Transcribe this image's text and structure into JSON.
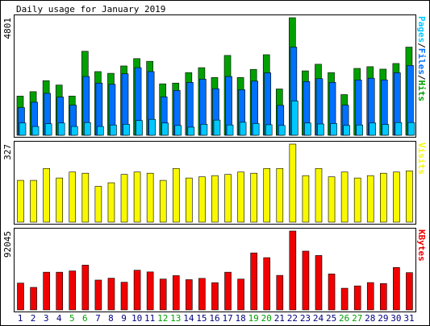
{
  "title": "Daily usage for January 2019",
  "colors": {
    "hits": "#00a000",
    "files": "#0070ff",
    "pages": "#00c8ff",
    "visits": "#f8f800",
    "kbytes": "#f00000",
    "weekend_label": "#00a000",
    "weekday_label": "#000080",
    "border": "#000000",
    "background": "#ffffff"
  },
  "chart_data": [
    {
      "type": "bar",
      "panel": "hits-files-pages",
      "categories": [
        "1",
        "2",
        "3",
        "4",
        "5",
        "6",
        "7",
        "8",
        "9",
        "10",
        "11",
        "12",
        "13",
        "14",
        "15",
        "16",
        "17",
        "18",
        "19",
        "20",
        "21",
        "22",
        "23",
        "24",
        "25",
        "26",
        "27",
        "28",
        "29",
        "30",
        "31"
      ],
      "weekend_days": [
        "5",
        "6",
        "12",
        "13",
        "19",
        "20",
        "26",
        "27"
      ],
      "ymax_label": "4801",
      "ylim": [
        0,
        4801
      ],
      "right_label_parts": [
        "Pages",
        "/",
        "Files",
        "/",
        "Hits"
      ],
      "series": [
        {
          "name": "Hits",
          "values": [
            1600,
            1780,
            2230,
            2050,
            1600,
            3430,
            2600,
            2530,
            2830,
            3130,
            3020,
            2100,
            2130,
            2560,
            2760,
            2360,
            3260,
            2360,
            2690,
            3290,
            1890,
            4801,
            2630,
            2900,
            2560,
            1660,
            2730,
            2800,
            2700,
            2930,
            3600
          ]
        },
        {
          "name": "Files",
          "values": [
            1130,
            1350,
            1710,
            1560,
            1230,
            2400,
            2130,
            2080,
            2510,
            2760,
            2600,
            1570,
            1830,
            2160,
            2290,
            1900,
            2400,
            1860,
            2210,
            2550,
            1220,
            3600,
            2190,
            2310,
            2160,
            1230,
            2260,
            2330,
            2260,
            2550,
            2850
          ]
        },
        {
          "name": "Pages",
          "values": [
            500,
            360,
            470,
            500,
            360,
            520,
            360,
            420,
            450,
            600,
            650,
            500,
            400,
            330,
            450,
            620,
            420,
            530,
            480,
            430,
            400,
            1400,
            500,
            460,
            480,
            400,
            420,
            500,
            440,
            520,
            520
          ]
        }
      ]
    },
    {
      "type": "bar",
      "panel": "visits",
      "categories": [
        "1",
        "2",
        "3",
        "4",
        "5",
        "6",
        "7",
        "8",
        "9",
        "10",
        "11",
        "12",
        "13",
        "14",
        "15",
        "16",
        "17",
        "18",
        "19",
        "20",
        "21",
        "22",
        "23",
        "24",
        "25",
        "26",
        "27",
        "28",
        "29",
        "30",
        "31"
      ],
      "ymax_label": "327",
      "ylim": [
        0,
        327
      ],
      "right_label": "Visits",
      "series": [
        {
          "name": "Visits",
          "values": [
            175,
            175,
            225,
            185,
            210,
            205,
            150,
            165,
            200,
            210,
            205,
            175,
            225,
            185,
            190,
            195,
            200,
            210,
            205,
            225,
            225,
            327,
            195,
            225,
            190,
            210,
            185,
            195,
            205,
            210,
            215
          ]
        }
      ]
    },
    {
      "type": "bar",
      "panel": "kbytes",
      "categories": [
        "1",
        "2",
        "3",
        "4",
        "5",
        "6",
        "7",
        "8",
        "9",
        "10",
        "11",
        "12",
        "13",
        "14",
        "15",
        "16",
        "17",
        "18",
        "19",
        "20",
        "21",
        "22",
        "23",
        "24",
        "25",
        "26",
        "27",
        "28",
        "29",
        "30",
        "31"
      ],
      "ymax_label": "92045",
      "ylim": [
        0,
        92045
      ],
      "right_label": "KBytes",
      "series": [
        {
          "name": "KBytes",
          "values": [
            31300,
            26300,
            44000,
            44000,
            45500,
            52300,
            34800,
            37000,
            32300,
            46300,
            44300,
            36000,
            40000,
            35300,
            36800,
            31800,
            44000,
            36000,
            66500,
            61000,
            40300,
            92045,
            68600,
            63500,
            42000,
            25300,
            28000,
            31900,
            30800,
            49500,
            43500
          ]
        }
      ]
    }
  ]
}
